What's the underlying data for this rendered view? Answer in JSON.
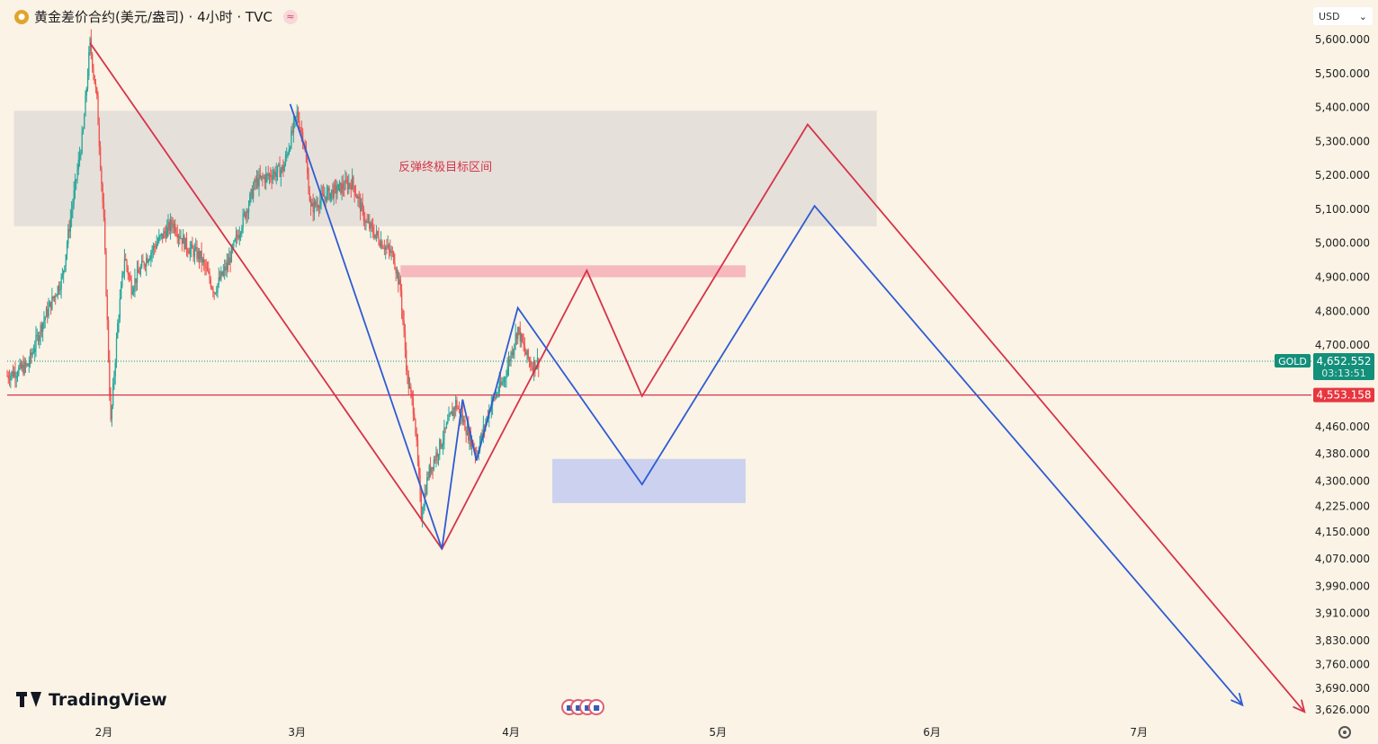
{
  "header": {
    "symbol_title": "黄金差价合约(美元/盎司) · 4小时 · TVC",
    "wave_icon": "≈"
  },
  "currency_selector": {
    "value": "USD"
  },
  "branding": {
    "logo_text": "TradingView"
  },
  "colors": {
    "background": "#faf3e6",
    "bull_candle": "#26a69a",
    "bear_candle": "#ef5350",
    "red_path": "#d6334a",
    "blue_path": "#2f5bd3",
    "zone_grey": "#e0dcd6",
    "zone_red": "#f5b3b8",
    "zone_blue": "#c5cdef",
    "last_price_label": "#138f7a",
    "level_label": "#e8363f"
  },
  "chart_data": {
    "type": "candlestick",
    "symbol": "GOLD",
    "y_axis": {
      "min": 3626,
      "max": 5600,
      "ticks": [
        5600,
        5500,
        5400,
        5300,
        5200,
        5100,
        5000,
        4900,
        4800,
        4700,
        4460,
        4380,
        4300,
        4225,
        4150,
        4070,
        3990,
        3910,
        3830,
        3760,
        3690,
        3626
      ],
      "tick_labels": [
        "5,600.000",
        "5,500.000",
        "5,400.000",
        "5,300.000",
        "5,200.000",
        "5,100.000",
        "5,000.000",
        "4,900.000",
        "4,800.000",
        "4,700.000",
        "4,460.000",
        "4,380.000",
        "4,300.000",
        "4,225.000",
        "4,150.000",
        "4,070.000",
        "3,990.000",
        "3,910.000",
        "3,830.000",
        "3,760.000",
        "3,690.000",
        "3,626.000"
      ]
    },
    "x_axis": {
      "start_date": "2026-01-18",
      "end_date": "2026-07-26",
      "ticks": [
        {
          "date": "2026-02-01",
          "label": "2月"
        },
        {
          "date": "2026-03-01",
          "label": "3月"
        },
        {
          "date": "2026-04-01",
          "label": "4月"
        },
        {
          "date": "2026-05-01",
          "label": "5月"
        },
        {
          "date": "2026-06-01",
          "label": "6月"
        },
        {
          "date": "2026-07-01",
          "label": "7月"
        }
      ]
    },
    "price_path": [
      [
        "2026-01-18",
        4610
      ],
      [
        "2026-01-21",
        4640
      ],
      [
        "2026-01-23",
        4760
      ],
      [
        "2026-01-26",
        4900
      ],
      [
        "2026-01-27",
        5050
      ],
      [
        "2026-01-29",
        5330
      ],
      [
        "2026-01-30",
        5590
      ],
      [
        "2026-01-31",
        5420
      ],
      [
        "2026-02-01",
        5060
      ],
      [
        "2026-02-02",
        4470
      ],
      [
        "2026-02-03",
        4760
      ],
      [
        "2026-02-04",
        4960
      ],
      [
        "2026-02-05",
        4870
      ],
      [
        "2026-02-07",
        4950
      ],
      [
        "2026-02-09",
        5010
      ],
      [
        "2026-02-11",
        5060
      ],
      [
        "2026-02-13",
        4990
      ],
      [
        "2026-02-15",
        4960
      ],
      [
        "2026-02-17",
        4860
      ],
      [
        "2026-02-19",
        4940
      ],
      [
        "2026-02-21",
        5060
      ],
      [
        "2026-02-23",
        5180
      ],
      [
        "2026-02-25",
        5200
      ],
      [
        "2026-02-27",
        5220
      ],
      [
        "2026-03-01",
        5380
      ],
      [
        "2026-03-02",
        5300
      ],
      [
        "2026-03-03",
        5100
      ],
      [
        "2026-03-05",
        5140
      ],
      [
        "2026-03-07",
        5160
      ],
      [
        "2026-03-09",
        5180
      ],
      [
        "2026-03-11",
        5060
      ],
      [
        "2026-03-13",
        5010
      ],
      [
        "2026-03-15",
        4960
      ],
      [
        "2026-03-16",
        4860
      ],
      [
        "2026-03-17",
        4600
      ],
      [
        "2026-03-18",
        4500
      ],
      [
        "2026-03-19",
        4200
      ],
      [
        "2026-03-20",
        4320
      ],
      [
        "2026-03-22",
        4420
      ],
      [
        "2026-03-24",
        4530
      ],
      [
        "2026-03-26",
        4430
      ],
      [
        "2026-03-27",
        4380
      ],
      [
        "2026-03-29",
        4520
      ],
      [
        "2026-03-31",
        4600
      ],
      [
        "2026-04-02",
        4750
      ],
      [
        "2026-04-03",
        4680
      ],
      [
        "2026-04-04",
        4640
      ],
      [
        "2026-04-05",
        4652.552
      ]
    ],
    "last_price": {
      "label": "GOLD",
      "value": "4,652.552",
      "countdown": "03:13:51",
      "price": 4652.552
    },
    "horizontal_level": {
      "value": "4,553.158",
      "price": 4553.158
    },
    "zones": [
      {
        "name": "rebound-target-zone",
        "label": "反弹终极目标区间",
        "from_date": "2026-01-19",
        "to_date": "2026-05-24",
        "top": 5390,
        "bottom": 5050
      },
      {
        "name": "red-resistance-zone",
        "from_date": "2026-03-16",
        "to_date": "2026-05-05",
        "top": 4935,
        "bottom": 4900
      },
      {
        "name": "blue-support-zone",
        "from_date": "2026-04-07",
        "to_date": "2026-05-05",
        "top": 4365,
        "bottom": 4235
      }
    ],
    "projection_paths": [
      {
        "name": "red-projection",
        "color": "#d6334a",
        "points": [
          [
            "2026-01-30",
            5590
          ],
          [
            "2026-03-22",
            4100
          ],
          [
            "2026-04-12",
            4920
          ],
          [
            "2026-04-20",
            4550
          ],
          [
            "2026-05-14",
            5350
          ],
          [
            "2026-07-25",
            3620
          ]
        ]
      },
      {
        "name": "blue-projection",
        "color": "#2f5bd3",
        "points": [
          [
            "2026-02-28",
            5410
          ],
          [
            "2026-03-22",
            4100
          ],
          [
            "2026-03-25",
            4540
          ],
          [
            "2026-03-27",
            4360
          ],
          [
            "2026-04-02",
            4810
          ],
          [
            "2026-04-20",
            4290
          ],
          [
            "2026-05-15",
            5110
          ],
          [
            "2026-07-16",
            3640
          ]
        ]
      }
    ],
    "events": [
      "us-flag-1",
      "us-flag-2",
      "us-flag-3",
      "us-flag-4"
    ]
  }
}
